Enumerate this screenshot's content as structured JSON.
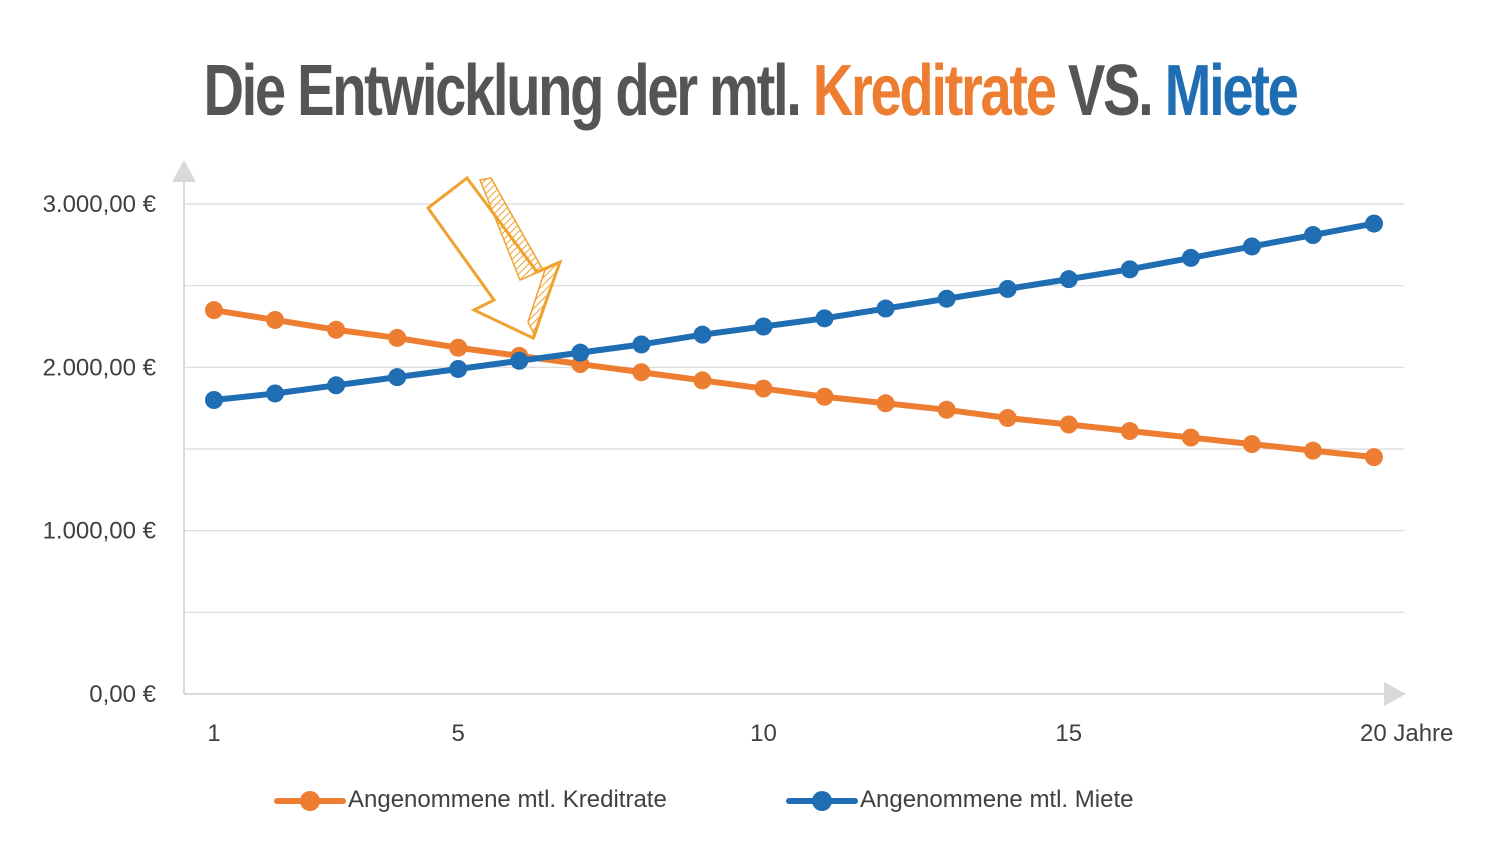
{
  "title": {
    "part1": "Die Entwicklung der mtl.",
    "part2": "Kreditrate",
    "part3": "VS.",
    "part4": "Miete"
  },
  "colors": {
    "orange": "#ED7D31",
    "blue": "#1F6DB3",
    "title_gray": "#555555",
    "grid": "#D9D9D9",
    "axis": "#D9D9D9",
    "arrow": "#F0A22E"
  },
  "chart_data": {
    "type": "line",
    "x": [
      1,
      2,
      3,
      4,
      5,
      6,
      7,
      8,
      9,
      10,
      11,
      12,
      13,
      14,
      15,
      16,
      17,
      18,
      19,
      20
    ],
    "x_tick_labels": [
      {
        "x": 1,
        "label": "1"
      },
      {
        "x": 5,
        "label": "5"
      },
      {
        "x": 10,
        "label": "10"
      },
      {
        "x": 15,
        "label": "15"
      },
      {
        "x": 20,
        "label": "20 Jahre"
      }
    ],
    "y_tick_labels": [
      {
        "y": 0,
        "label": "0,00 €"
      },
      {
        "y": 1000,
        "label": "1.000,00 €"
      },
      {
        "y": 2000,
        "label": "2.000,00 €"
      },
      {
        "y": 3000,
        "label": "3.000,00 €"
      }
    ],
    "gridlines": [
      500,
      1000,
      1500,
      2000,
      2500,
      3000
    ],
    "ylim": [
      0,
      3000
    ],
    "xlim": [
      0.5,
      20.5
    ],
    "series": [
      {
        "name": "Angenommene mtl. Kreditrate",
        "color": "#ED7D31",
        "values": [
          2350,
          2290,
          2230,
          2180,
          2120,
          2070,
          2020,
          1970,
          1920,
          1870,
          1820,
          1780,
          1740,
          1690,
          1650,
          1610,
          1570,
          1530,
          1490,
          1450
        ]
      },
      {
        "name": "Angenommene mtl. Miete",
        "color": "#1F6DB3",
        "values": [
          1800,
          1840,
          1890,
          1940,
          1990,
          2040,
          2090,
          2140,
          2200,
          2250,
          2300,
          2360,
          2420,
          2480,
          2540,
          2600,
          2670,
          2740,
          2810,
          2880
        ]
      }
    ],
    "legend_position": "bottom",
    "grid": true,
    "annotation": "hand-drawn arrow pointing to crossover"
  }
}
